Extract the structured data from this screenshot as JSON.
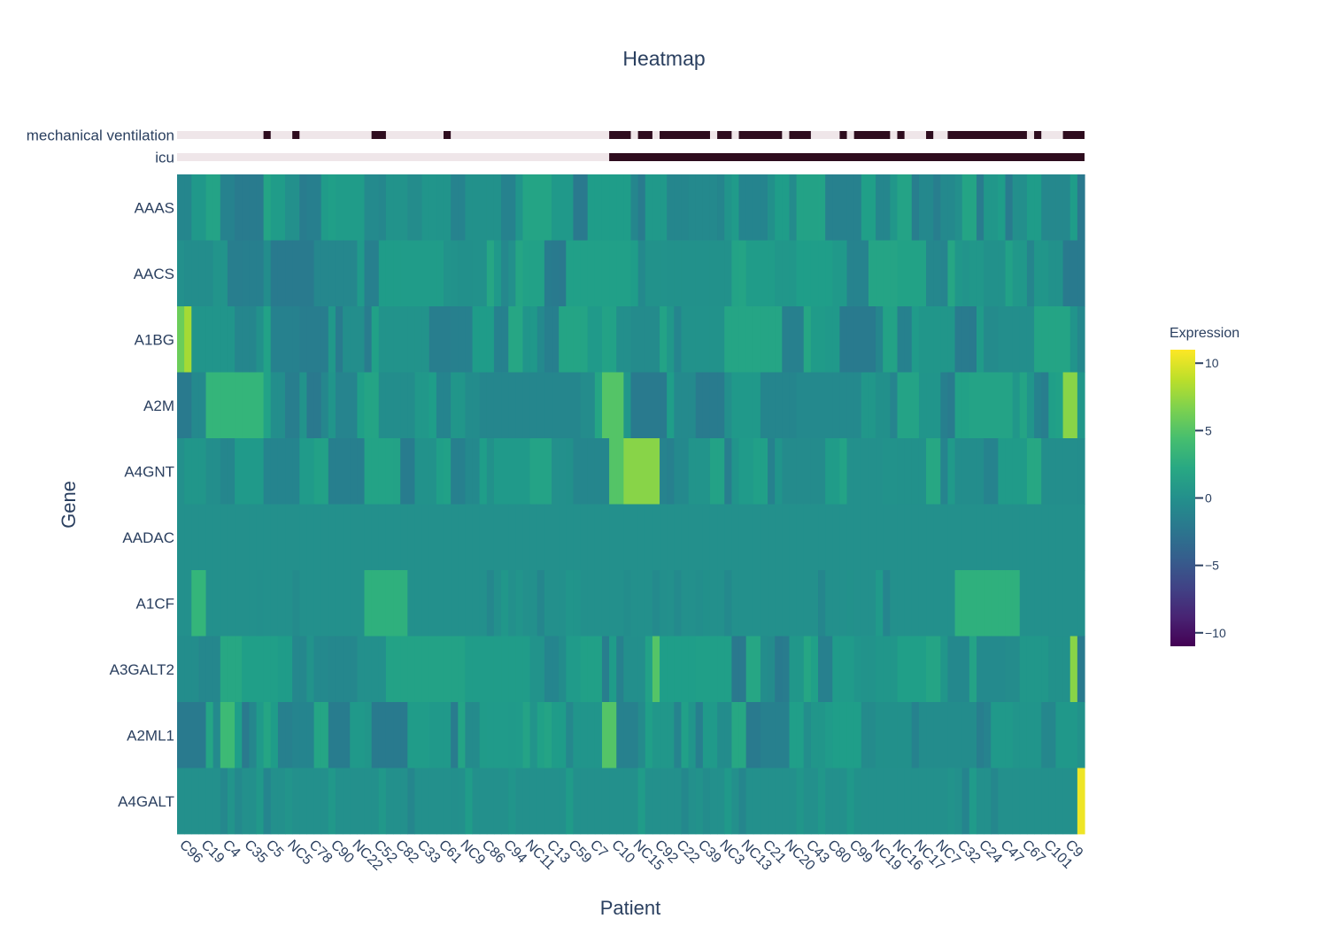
{
  "chart_data": {
    "type": "heatmap",
    "title": "Heatmap",
    "xlabel": "Patient",
    "ylabel": "Gene",
    "colorbar": {
      "title": "Expression",
      "range": [
        -11,
        11
      ],
      "ticks": [
        10,
        5,
        0,
        -5,
        -10
      ],
      "tick_labels": [
        "10",
        "5",
        "0",
        "−5",
        "−10"
      ],
      "colorscale": "viridis"
    },
    "x_tick_labels": [
      "C96",
      "C19",
      "C4",
      "C35",
      "C5",
      "NC5",
      "C78",
      "C90",
      "NC22",
      "C52",
      "C82",
      "C33",
      "C61",
      "NC9",
      "C86",
      "C94",
      "NC11",
      "C13",
      "C59",
      "C7",
      "C10",
      "NC15",
      "C92",
      "C22",
      "C39",
      "NC3",
      "NC13",
      "C21",
      "NC20",
      "C43",
      "C80",
      "C99",
      "NC19",
      "NC16",
      "NC17",
      "NC7",
      "C32",
      "C24",
      "C47",
      "C67",
      "C101",
      "C9"
    ],
    "n_columns": 126,
    "genes": [
      "AAAS",
      "AACS",
      "A1BG",
      "A2M",
      "A4GNT",
      "AADAC",
      "A1CF",
      "A3GALT2",
      "A2ML1",
      "A4GALT"
    ],
    "annotation_tracks": [
      {
        "name": "mechanical ventilation",
        "colors": {
          "0": "#efe6e9",
          "1": "#2e0c1e"
        },
        "positive_runs": [
          [
            12,
            12
          ],
          [
            16,
            16
          ],
          [
            27,
            28
          ],
          [
            37,
            37
          ],
          [
            60,
            62
          ],
          [
            64,
            65
          ],
          [
            67,
            73
          ],
          [
            75,
            76
          ],
          [
            78,
            83
          ],
          [
            85,
            87
          ],
          [
            92,
            92
          ],
          [
            94,
            98
          ],
          [
            100,
            100
          ],
          [
            104,
            104
          ],
          [
            107,
            117
          ],
          [
            119,
            119
          ],
          [
            123,
            125
          ]
        ]
      },
      {
        "name": "icu",
        "colors": {
          "0": "#efe6e9",
          "1": "#2e0c1e"
        },
        "positive_runs": [
          [
            60,
            125
          ]
        ]
      }
    ],
    "highlights": [
      {
        "gene": "A1BG",
        "columns": [
          0,
          1
        ],
        "values": [
          6,
          8
        ]
      },
      {
        "gene": "A4GNT",
        "columns": [
          60,
          61,
          62
        ],
        "values": [
          5,
          5,
          7
        ]
      },
      {
        "gene": "A2M",
        "columns": [
          4,
          5,
          59,
          123
        ],
        "values": [
          3.5,
          3.5,
          5,
          7
        ]
      },
      {
        "gene": "A3GALT2",
        "columns": [
          66,
          124
        ],
        "values": [
          5,
          7
        ]
      },
      {
        "gene": "A2ML1",
        "columns": [
          6,
          7,
          59
        ],
        "values": [
          4,
          4,
          5
        ]
      },
      {
        "gene": "A4GALT",
        "columns": [
          125
        ],
        "values": [
          10.5
        ]
      },
      {
        "gene": "A1CF",
        "columns": [
          2,
          3,
          26,
          27,
          28,
          29,
          30,
          31,
          108,
          109,
          110,
          111,
          112,
          113,
          114,
          115,
          116
        ],
        "values": [
          3.5,
          3.5,
          3,
          3,
          3,
          3,
          3,
          3,
          3,
          3,
          3,
          3,
          3,
          3,
          3,
          3,
          3
        ]
      }
    ]
  }
}
